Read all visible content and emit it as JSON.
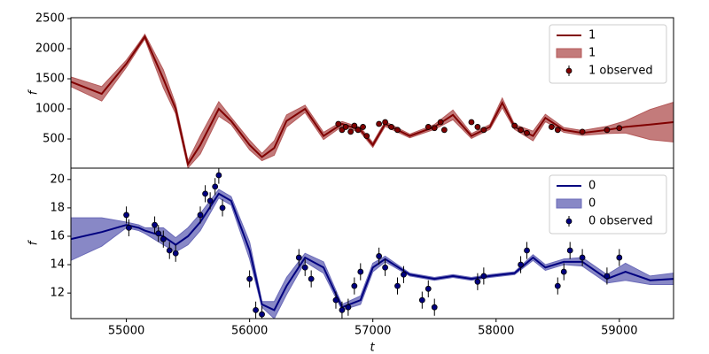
{
  "chart_data": [
    {
      "type": "line",
      "ylabel": "f",
      "xlim": [
        54550,
        59440
      ],
      "ylim": [
        15,
        2515
      ],
      "yticks": [
        500,
        1000,
        1500,
        2000,
        2500
      ],
      "x": [
        54550,
        54800,
        55000,
        55100,
        55150,
        55300,
        55400,
        55500,
        55600,
        55750,
        55850,
        56000,
        56100,
        56200,
        56300,
        56450,
        56600,
        56750,
        56900,
        57000,
        57100,
        57300,
        57500,
        57650,
        57800,
        57950,
        58050,
        58150,
        58300,
        58400,
        58550,
        58700,
        58900,
        59050,
        59250,
        59440
      ],
      "series": [
        {
          "name": "1",
          "color": "#800000",
          "values": [
            1450,
            1250,
            1750,
            2050,
            2200,
            1500,
            1000,
            80,
            400,
            1000,
            800,
            400,
            200,
            350,
            800,
            1000,
            550,
            750,
            650,
            400,
            750,
            550,
            700,
            900,
            550,
            700,
            1100,
            700,
            550,
            850,
            650,
            600,
            650,
            700,
            740,
            780
          ]
        }
      ],
      "band": {
        "name": "1",
        "color": "#b45a5a",
        "lower": [
          1370,
          1130,
          1690,
          2010,
          2160,
          1350,
          920,
          20,
          250,
          880,
          740,
          320,
          140,
          230,
          700,
          940,
          490,
          710,
          610,
          360,
          710,
          520,
          660,
          820,
          510,
          660,
          1020,
          660,
          470,
          790,
          610,
          560,
          590,
          600,
          490,
          450
        ],
        "upper": [
          1530,
          1370,
          1810,
          2090,
          2240,
          1650,
          1080,
          140,
          550,
          1120,
          860,
          480,
          260,
          470,
          900,
          1060,
          610,
          790,
          690,
          440,
          790,
          580,
          740,
          980,
          590,
          740,
          1180,
          740,
          630,
          910,
          690,
          640,
          710,
          800,
          990,
          1110
        ]
      },
      "observed": {
        "name": "1 observed",
        "color": "#800000",
        "x": [
          56720,
          56750,
          56780,
          56820,
          56850,
          56880,
          56920,
          56950,
          57050,
          57100,
          57150,
          57200,
          57450,
          57500,
          57550,
          57580,
          57800,
          57850,
          57900,
          58150,
          58200,
          58250,
          58450,
          58500,
          58700,
          58900,
          59000
        ],
        "values": [
          750,
          650,
          700,
          620,
          720,
          650,
          700,
          550,
          750,
          780,
          700,
          650,
          700,
          680,
          780,
          650,
          780,
          700,
          650,
          720,
          650,
          600,
          700,
          650,
          620,
          650,
          680
        ],
        "errors": [
          40,
          40,
          40,
          40,
          40,
          40,
          40,
          40,
          40,
          40,
          40,
          40,
          40,
          40,
          40,
          40,
          40,
          40,
          40,
          40,
          40,
          40,
          40,
          40,
          40,
          40,
          40
        ]
      },
      "legend": "upper right"
    },
    {
      "type": "line",
      "ylabel": "f",
      "xlabel": "t",
      "xlim": [
        54550,
        59440
      ],
      "ylim": [
        10.2,
        20.8
      ],
      "yticks": [
        12,
        14,
        16,
        18,
        20
      ],
      "xticks": [
        55000,
        56000,
        57000,
        58000,
        59000
      ],
      "x": [
        54550,
        54800,
        55000,
        55100,
        55150,
        55300,
        55400,
        55500,
        55600,
        55750,
        55850,
        56000,
        56100,
        56200,
        56300,
        56450,
        56600,
        56750,
        56900,
        57000,
        57100,
        57300,
        57500,
        57650,
        57800,
        57950,
        58050,
        58150,
        58300,
        58400,
        58550,
        58700,
        58900,
        59050,
        59250,
        59440
      ],
      "series": [
        {
          "name": "0",
          "color": "#00007f",
          "values": [
            15.8,
            16.3,
            16.8,
            16.6,
            16.4,
            16.0,
            15.4,
            16.0,
            17.0,
            19.0,
            18.5,
            15.0,
            11.2,
            10.8,
            12.5,
            14.5,
            13.8,
            11.0,
            11.5,
            13.8,
            14.4,
            13.3,
            13.0,
            13.2,
            13.0,
            13.2,
            13.3,
            13.4,
            14.5,
            13.8,
            14.2,
            14.2,
            13.0,
            13.5,
            12.9,
            13.0
          ]
        }
      ],
      "band": {
        "name": "0",
        "color": "#6a6ab8",
        "lower": [
          14.3,
          15.3,
          16.6,
          16.4,
          16.2,
          15.4,
          14.9,
          15.4,
          16.4,
          18.7,
          18.2,
          14.4,
          11.0,
          10.2,
          11.9,
          14.2,
          13.4,
          10.8,
          11.2,
          13.5,
          14.2,
          13.2,
          12.9,
          13.1,
          12.9,
          13.1,
          13.2,
          13.3,
          14.3,
          13.6,
          14.0,
          13.9,
          12.7,
          12.9,
          12.6,
          12.6
        ],
        "upper": [
          17.3,
          17.3,
          17.0,
          16.8,
          16.6,
          16.6,
          15.9,
          16.6,
          17.6,
          19.3,
          18.8,
          15.6,
          11.4,
          11.4,
          13.1,
          14.8,
          14.2,
          11.2,
          11.8,
          14.1,
          14.6,
          13.4,
          13.1,
          13.3,
          13.1,
          13.3,
          13.4,
          13.5,
          14.7,
          14.0,
          14.4,
          14.5,
          13.3,
          14.1,
          13.2,
          13.4
        ]
      },
      "observed": {
        "name": "0 observed",
        "color": "#00007f",
        "x": [
          55000,
          55020,
          55230,
          55260,
          55300,
          55350,
          55400,
          55600,
          55640,
          55680,
          55720,
          55750,
          55780,
          56000,
          56050,
          56100,
          56400,
          56450,
          56500,
          56700,
          56750,
          56800,
          56850,
          56900,
          57050,
          57100,
          57200,
          57250,
          57400,
          57450,
          57500,
          57850,
          57900,
          58200,
          58250,
          58500,
          58550,
          58600,
          58700,
          58900,
          59000
        ],
        "values": [
          17.5,
          16.6,
          16.8,
          16.2,
          15.8,
          15.0,
          14.8,
          17.5,
          19.0,
          18.5,
          19.5,
          20.3,
          18.0,
          13.0,
          10.8,
          10.5,
          14.5,
          13.8,
          13.0,
          11.5,
          10.8,
          11.0,
          12.5,
          13.5,
          14.6,
          13.8,
          12.5,
          13.3,
          11.5,
          12.3,
          11.0,
          12.8,
          13.2,
          14.0,
          15.0,
          12.5,
          13.5,
          15.0,
          14.5,
          13.2,
          14.5
        ],
        "errors": [
          0.6,
          0.6,
          0.6,
          0.6,
          0.6,
          0.6,
          0.6,
          0.6,
          0.6,
          0.6,
          0.6,
          0.6,
          0.6,
          0.6,
          0.6,
          0.6,
          0.6,
          0.6,
          0.6,
          0.6,
          0.6,
          0.6,
          0.6,
          0.6,
          0.6,
          0.6,
          0.6,
          0.6,
          0.6,
          0.6,
          0.6,
          0.6,
          0.6,
          0.6,
          0.6,
          0.6,
          0.6,
          0.6,
          0.6,
          0.6,
          0.6
        ]
      },
      "legend": "upper right"
    }
  ]
}
